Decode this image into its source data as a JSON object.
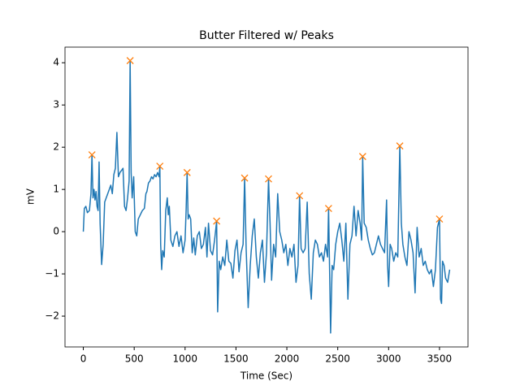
{
  "chart_data": {
    "type": "line",
    "title": "Butter Filtered w/ Peaks",
    "x_label": "Time (Sec)",
    "y_label": "mV",
    "xlim": [
      -180,
      3780
    ],
    "ylim": [
      -2.73,
      4.37
    ],
    "xticks": [
      0,
      500,
      1000,
      1500,
      2000,
      2500,
      3000,
      3500
    ],
    "yticks": [
      {
        "value": -2,
        "label": "−2"
      },
      {
        "value": -1,
        "label": "−1"
      },
      0,
      1,
      2,
      3,
      4
    ],
    "series": [
      {
        "color": "#1f77b4",
        "x": [
          0,
          10,
          25,
          40,
          60,
          75,
          85,
          95,
          105,
          115,
          125,
          135,
          145,
          155,
          165,
          180,
          195,
          210,
          225,
          240,
          255,
          270,
          285,
          300,
          315,
          330,
          345,
          360,
          375,
          390,
          405,
          420,
          435,
          450,
          460,
          470,
          480,
          495,
          510,
          525,
          540,
          560,
          580,
          600,
          615,
          625,
          640,
          655,
          670,
          685,
          700,
          715,
          730,
          745,
          752,
          760,
          770,
          780,
          795,
          810,
          825,
          835,
          845,
          860,
          880,
          900,
          920,
          940,
          960,
          980,
          1000,
          1010,
          1020,
          1030,
          1040,
          1055,
          1070,
          1085,
          1100,
          1120,
          1140,
          1160,
          1180,
          1200,
          1215,
          1230,
          1250,
          1270,
          1290,
          1310,
          1320,
          1335,
          1350,
          1370,
          1390,
          1410,
          1430,
          1450,
          1470,
          1490,
          1510,
          1530,
          1550,
          1570,
          1585,
          1600,
          1620,
          1640,
          1660,
          1680,
          1700,
          1720,
          1740,
          1760,
          1780,
          1800,
          1820,
          1835,
          1850,
          1870,
          1890,
          1910,
          1930,
          1950,
          1970,
          1990,
          2010,
          2030,
          2050,
          2070,
          2090,
          2110,
          2125,
          2140,
          2160,
          2180,
          2200,
          2220,
          2240,
          2260,
          2280,
          2300,
          2320,
          2340,
          2360,
          2380,
          2400,
          2410,
          2420,
          2430,
          2445,
          2460,
          2480,
          2500,
          2520,
          2540,
          2560,
          2580,
          2600,
          2620,
          2640,
          2660,
          2680,
          2700,
          2720,
          2735,
          2745,
          2760,
          2780,
          2800,
          2820,
          2840,
          2860,
          2880,
          2900,
          2920,
          2940,
          2960,
          2980,
          2990,
          3000,
          3015,
          3030,
          3050,
          3070,
          3090,
          3110,
          3125,
          3140,
          3160,
          3180,
          3200,
          3220,
          3240,
          3260,
          3280,
          3300,
          3320,
          3340,
          3360,
          3380,
          3400,
          3420,
          3440,
          3460,
          3480,
          3500,
          3510,
          3520,
          3530,
          3545,
          3560,
          3580,
          3600
        ],
        "values": [
          0,
          0.55,
          0.6,
          0.45,
          0.5,
          0.9,
          1.82,
          0.8,
          1.0,
          0.75,
          0.95,
          0.6,
          0.5,
          1.65,
          0.2,
          -0.78,
          -0.3,
          0.7,
          0.8,
          0.9,
          1.0,
          1.1,
          0.9,
          1.35,
          1.5,
          2.35,
          1.3,
          1.4,
          1.45,
          1.5,
          0.6,
          0.5,
          0.8,
          1.2,
          4.05,
          1.4,
          0.8,
          1.3,
          0.0,
          -0.1,
          0.3,
          0.4,
          0.5,
          0.55,
          0.9,
          0.95,
          1.15,
          1.2,
          1.3,
          1.25,
          1.35,
          1.3,
          1.4,
          1.3,
          1.55,
          -0.3,
          -0.9,
          -0.45,
          -0.6,
          0.5,
          0.8,
          0.4,
          0.6,
          -0.2,
          -0.35,
          -0.1,
          0.0,
          -0.35,
          -0.1,
          -0.5,
          -0.2,
          0.5,
          1.4,
          0.3,
          0.4,
          0.3,
          -0.5,
          -0.15,
          -0.55,
          -0.1,
          0.0,
          -0.4,
          -0.3,
          0.1,
          -0.6,
          0.2,
          -0.45,
          -0.55,
          -0.2,
          0.25,
          -1.9,
          -0.7,
          -0.9,
          -0.6,
          -0.8,
          -0.2,
          -0.7,
          -0.75,
          -1.1,
          -0.45,
          -0.2,
          -0.95,
          -0.5,
          -0.3,
          1.27,
          -0.4,
          -1.8,
          -0.8,
          -0.1,
          0.3,
          -0.6,
          -1.1,
          -0.5,
          -0.2,
          -1.2,
          -0.5,
          1.25,
          0.2,
          -1.15,
          -0.3,
          -0.6,
          0.9,
          0.0,
          -0.2,
          -0.5,
          -0.3,
          -0.8,
          -0.4,
          -0.6,
          -0.3,
          -1.2,
          -0.8,
          0.85,
          -0.4,
          -0.5,
          -0.4,
          0.7,
          -1.0,
          -1.6,
          -0.5,
          -0.2,
          -0.3,
          -0.6,
          -0.5,
          -0.7,
          -0.3,
          -0.6,
          0.55,
          -0.9,
          -2.4,
          -0.8,
          -0.9,
          -0.3,
          0.0,
          0.2,
          -0.2,
          -0.7,
          0.2,
          -1.6,
          -0.3,
          -0.1,
          0.6,
          -0.1,
          0.5,
          0.2,
          -0.2,
          1.78,
          0.2,
          0.1,
          -0.2,
          -0.4,
          -0.55,
          -0.5,
          -0.3,
          -0.1,
          -0.3,
          -0.4,
          -0.5,
          0.75,
          -0.8,
          -1.3,
          -0.3,
          -0.4,
          -0.7,
          -0.5,
          -0.6,
          2.03,
          0.2,
          -0.3,
          -0.6,
          -0.8,
          0.0,
          -0.2,
          -0.5,
          -1.45,
          0.1,
          -0.6,
          -0.4,
          -0.8,
          -0.7,
          -0.9,
          -1.0,
          -0.9,
          -1.3,
          -0.9,
          0.1,
          0.3,
          -1.6,
          -1.7,
          -0.7,
          -0.8,
          -1.1,
          -1.2,
          -0.9
        ]
      },
      {
        "color": "#ff7f0e",
        "marker": "x",
        "x": [
          85,
          460,
          752,
          1020,
          1310,
          1585,
          1820,
          2125,
          2410,
          2745,
          3110,
          3500
        ],
        "values": [
          1.82,
          4.05,
          1.55,
          1.4,
          0.25,
          1.27,
          1.25,
          0.85,
          0.55,
          1.78,
          2.03,
          0.3
        ]
      }
    ]
  }
}
